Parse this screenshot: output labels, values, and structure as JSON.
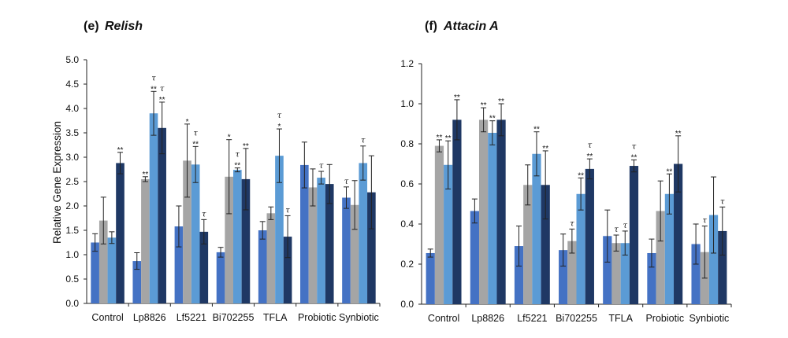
{
  "chart_data": [
    {
      "type": "bar",
      "panel_label": "(e)",
      "title": "Relish",
      "ylabel": "Relative Gene Expression",
      "ylim": [
        0,
        5.0
      ],
      "yticks": [
        "0.0",
        "0.5",
        "1.0",
        "1.5",
        "2.0",
        "2.5",
        "3.0",
        "3.5",
        "4.0",
        "4.5",
        "5.0"
      ],
      "ytick_values": [
        0,
        0.5,
        1,
        1.5,
        2,
        2.5,
        3,
        3.5,
        4,
        4.5,
        5
      ],
      "categories": [
        "Control",
        "Lp8826",
        "Lf5221",
        "Bi702255",
        "TFLA",
        "Probiotic",
        "Synbiotic"
      ],
      "series": [
        {
          "color": "#4472c4",
          "values": [
            1.25,
            0.87,
            1.58,
            1.05,
            1.5,
            2.84,
            2.17
          ],
          "errors": [
            0.18,
            0.17,
            0.42,
            0.1,
            0.18,
            0.47,
            0.22
          ],
          "annotations": [
            [],
            [],
            [],
            [],
            [],
            [],
            [
              "τ"
            ]
          ]
        },
        {
          "color": "#a5a5a5",
          "values": [
            1.7,
            2.55,
            2.93,
            2.6,
            1.85,
            2.38,
            2.02
          ],
          "errors": [
            0.48,
            0.05,
            0.75,
            0.76,
            0.13,
            0.38,
            0.5
          ],
          "annotations": [
            [],
            [
              "**"
            ],
            [
              "*"
            ],
            [
              "*"
            ],
            [],
            [],
            []
          ]
        },
        {
          "color": "#5b9bd5",
          "values": [
            1.35,
            3.9,
            2.85,
            2.74,
            3.03,
            2.58,
            2.88
          ],
          "errors": [
            0.12,
            0.45,
            0.37,
            0.04,
            0.55,
            0.13,
            0.35
          ],
          "annotations": [
            [],
            [
              "**",
              "τ"
            ],
            [
              "**",
              "τ"
            ],
            [
              "**",
              "τ"
            ],
            [
              "*",
              "τ"
            ],
            [
              "τ"
            ],
            [
              "τ"
            ]
          ]
        },
        {
          "color": "#1f3864",
          "values": [
            2.88,
            3.6,
            1.47,
            2.55,
            1.37,
            2.45,
            2.28
          ],
          "errors": [
            0.22,
            0.53,
            0.25,
            0.63,
            0.43,
            0.4,
            0.75
          ],
          "annotations": [
            [
              "**"
            ],
            [
              "**",
              "τ"
            ],
            [
              "τ"
            ],
            [
              "**"
            ],
            [
              "τ"
            ],
            [],
            []
          ]
        }
      ]
    },
    {
      "type": "bar",
      "panel_label": "(f)",
      "title": "Attacin A",
      "ylabel": "",
      "ylim": [
        0,
        1.2
      ],
      "yticks": [
        "0.0",
        "0.2",
        "0.4",
        "0.6",
        "0.8",
        "1.0",
        "1.2"
      ],
      "ytick_values": [
        0,
        0.2,
        0.4,
        0.6,
        0.8,
        1.0,
        1.2
      ],
      "categories": [
        "Control",
        "Lp8826",
        "Lf5221",
        "Bi702255",
        "TFLA",
        "Probiotic",
        "Synbiotic"
      ],
      "series": [
        {
          "color": "#4472c4",
          "values": [
            0.255,
            0.465,
            0.29,
            0.27,
            0.34,
            0.255,
            0.3
          ],
          "errors": [
            0.02,
            0.06,
            0.1,
            0.08,
            0.13,
            0.07,
            0.1
          ],
          "annotations": [
            [],
            [],
            [],
            [],
            [],
            [],
            []
          ]
        },
        {
          "color": "#a5a5a5",
          "values": [
            0.79,
            0.92,
            0.595,
            0.315,
            0.305,
            0.465,
            0.26
          ],
          "errors": [
            0.03,
            0.06,
            0.1,
            0.06,
            0.04,
            0.15,
            0.13
          ],
          "annotations": [
            [
              "**"
            ],
            [
              "**"
            ],
            [],
            [
              "τ"
            ],
            [
              "τ"
            ],
            [],
            [
              "τ"
            ]
          ]
        },
        {
          "color": "#5b9bd5",
          "values": [
            0.695,
            0.855,
            0.75,
            0.55,
            0.305,
            0.55,
            0.445
          ],
          "errors": [
            0.12,
            0.06,
            0.11,
            0.08,
            0.06,
            0.1,
            0.19
          ],
          "annotations": [
            [
              "**"
            ],
            [
              "**"
            ],
            [
              "**"
            ],
            [
              "**"
            ],
            [
              "τ"
            ],
            [
              "**"
            ],
            []
          ]
        },
        {
          "color": "#1f3864",
          "values": [
            0.92,
            0.92,
            0.595,
            0.675,
            0.69,
            0.7,
            0.365
          ],
          "errors": [
            0.1,
            0.08,
            0.17,
            0.05,
            0.03,
            0.14,
            0.12
          ],
          "annotations": [
            [
              "**"
            ],
            [
              "**"
            ],
            [
              "**"
            ],
            [
              "**",
              "τ"
            ],
            [
              "**",
              "τ"
            ],
            [
              "**"
            ],
            [
              "τ"
            ]
          ]
        }
      ]
    }
  ]
}
